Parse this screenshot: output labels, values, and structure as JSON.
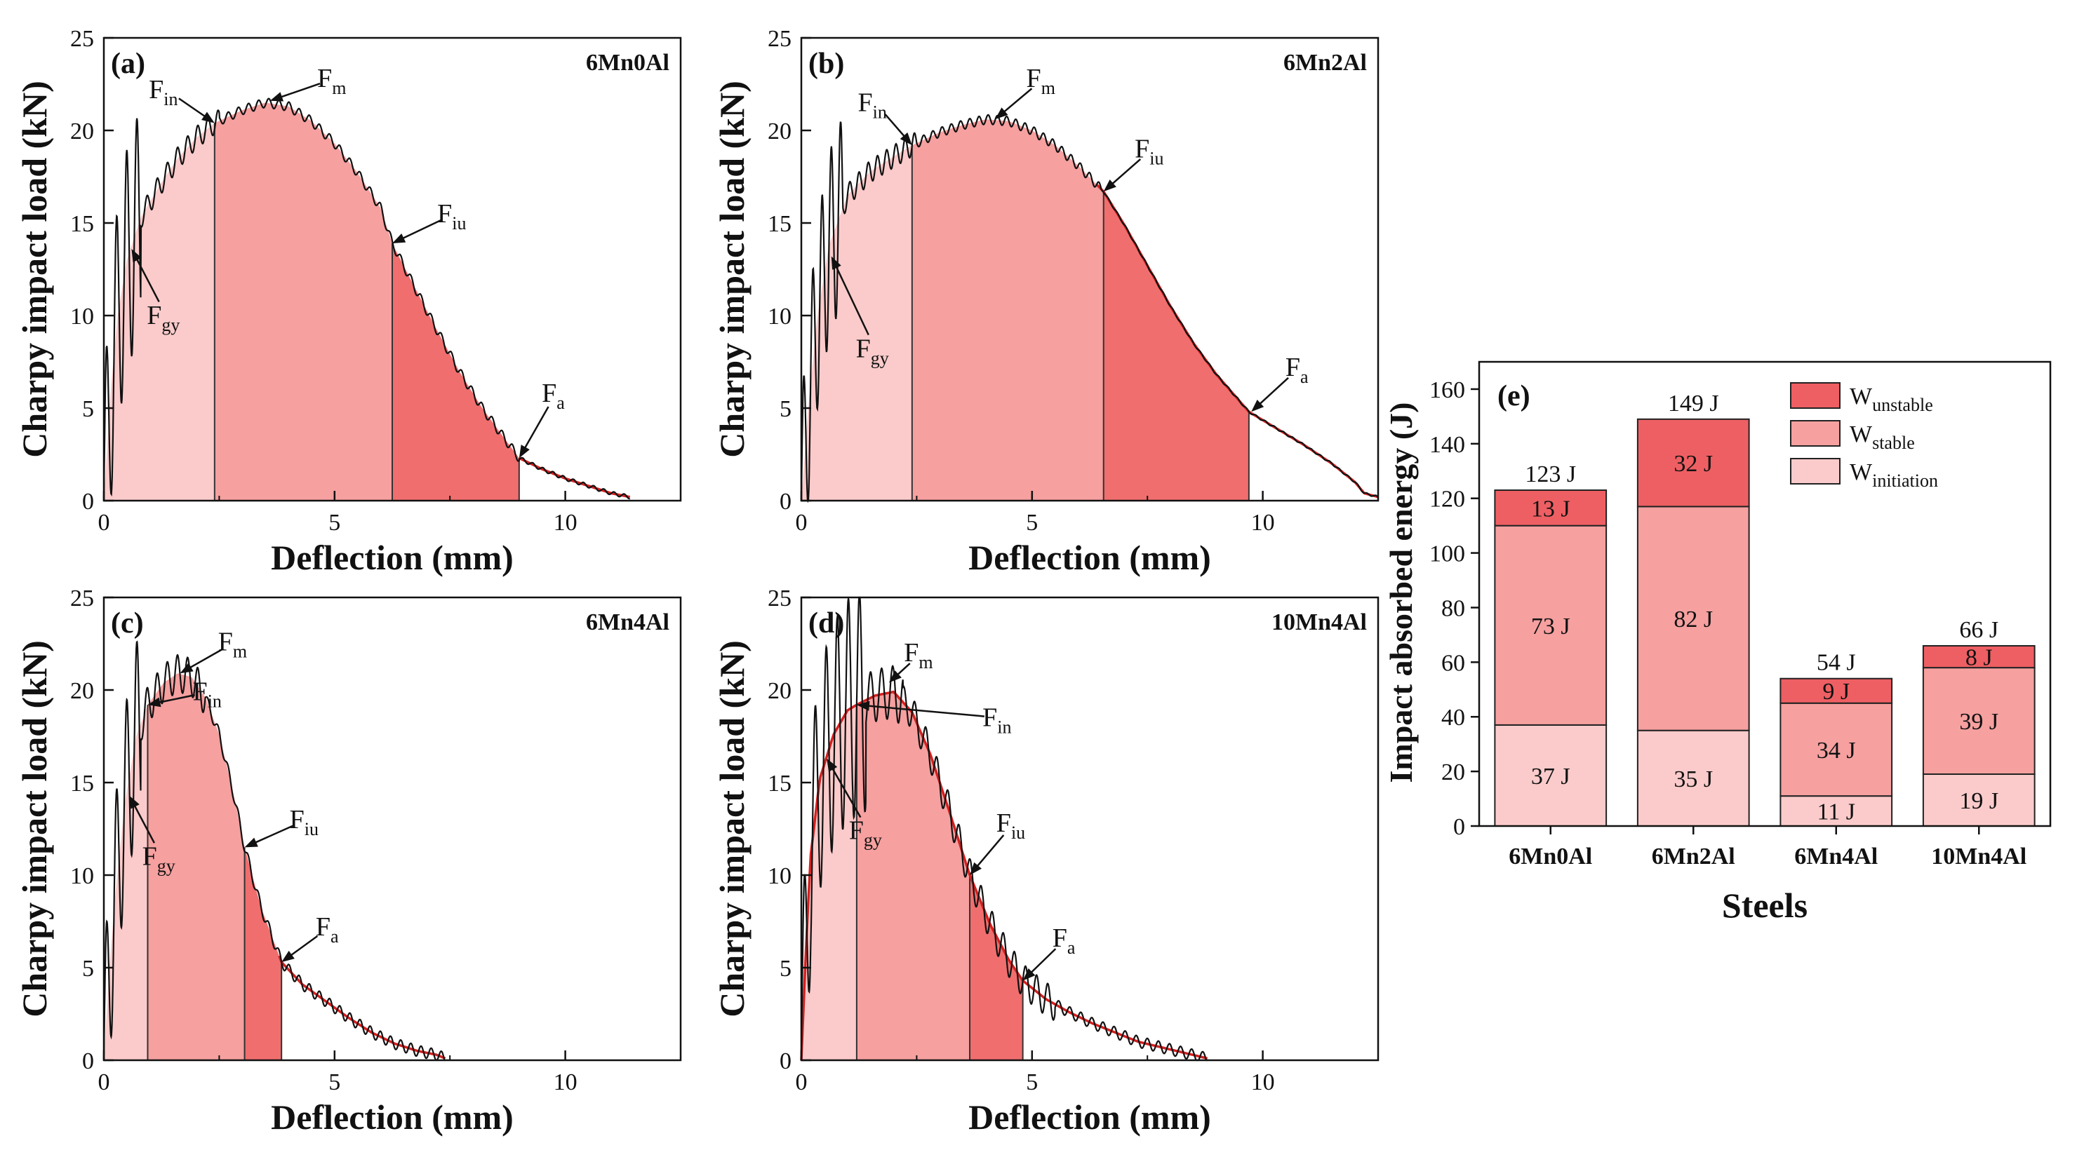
{
  "colors": {
    "initiation": "#fbcbcb",
    "stable": "#f6a0a0",
    "unstable": "#f16e6e",
    "unstable_dark": "#ee5f63",
    "curve_black": "#111111",
    "curve_red": "#d51f1f"
  },
  "panels": [
    {
      "label": "(a)",
      "steel": "6Mn0Al",
      "xlabel": "Deflection (mm)",
      "ylabel": "Charpy impact load (kN)",
      "xlim": [
        0,
        12.5
      ],
      "ylim": [
        0,
        25
      ],
      "xticks": [
        "0",
        "5",
        "10"
      ],
      "yticks": [
        "0",
        "5",
        "10",
        "15",
        "20",
        "25"
      ],
      "boundaries": {
        "in": 2.4,
        "iu": 6.25,
        "a": 9.0
      },
      "curve_end": 11.4,
      "smooth_points": [
        [
          0,
          0
        ],
        [
          0.15,
          6
        ],
        [
          0.3,
          10
        ],
        [
          0.5,
          13
        ],
        [
          0.8,
          15.3
        ],
        [
          1.2,
          17
        ],
        [
          1.6,
          18.5
        ],
        [
          2.0,
          19.6
        ],
        [
          2.4,
          20.4
        ],
        [
          3.0,
          21.1
        ],
        [
          3.5,
          21.5
        ],
        [
          4.0,
          21.3
        ],
        [
          4.5,
          20.5
        ],
        [
          5.0,
          19.3
        ],
        [
          5.5,
          17.7
        ],
        [
          6.0,
          15.8
        ],
        [
          6.25,
          13.9
        ],
        [
          6.7,
          11.7
        ],
        [
          7.2,
          9.3
        ],
        [
          7.7,
          7.0
        ],
        [
          8.2,
          5.0
        ],
        [
          8.7,
          3.3
        ],
        [
          9.0,
          2.3
        ],
        [
          9.5,
          1.7
        ],
        [
          10.0,
          1.2
        ],
        [
          10.5,
          0.8
        ],
        [
          11.0,
          0.4
        ],
        [
          11.4,
          0.2
        ]
      ],
      "osc": [
        [
          0,
          0.8,
          6
        ],
        [
          0.8,
          2.5,
          0.6
        ],
        [
          2.5,
          9.0,
          0.25
        ],
        [
          9.0,
          11.4,
          0.1
        ]
      ],
      "osc_period": 0.22,
      "red_from": 9.0,
      "arrows": [
        {
          "text": "F",
          "sub": "in",
          "x": 2.4,
          "y": 20.4,
          "tx": 1.35,
          "ty": 22.2
        },
        {
          "text": "F",
          "sub": "m",
          "x": 3.6,
          "y": 21.6,
          "tx": 5.0,
          "ty": 22.8
        },
        {
          "text": "F",
          "sub": "iu",
          "x": 6.25,
          "y": 13.9,
          "tx": 7.6,
          "ty": 15.5
        },
        {
          "text": "F",
          "sub": "gy",
          "x": 0.6,
          "y": 13.6,
          "tx": 1.35,
          "ty": 10.0
        },
        {
          "text": "F",
          "sub": "a",
          "x": 9.0,
          "y": 2.3,
          "tx": 9.8,
          "ty": 5.8
        }
      ]
    },
    {
      "label": "(b)",
      "steel": "6Mn2Al",
      "xlabel": "Deflection (mm)",
      "ylabel": "Charpy impact load (kN)",
      "xlim": [
        0,
        12.5
      ],
      "ylim": [
        0,
        25
      ],
      "xticks": [
        "0",
        "5",
        "10"
      ],
      "yticks": [
        "0",
        "5",
        "10",
        "15",
        "20",
        "25"
      ],
      "boundaries": {
        "in": 2.4,
        "iu": 6.55,
        "a": 9.7
      },
      "curve_end": 12.5,
      "smooth_points": [
        [
          0,
          0
        ],
        [
          0.15,
          5
        ],
        [
          0.35,
          10
        ],
        [
          0.6,
          13.8
        ],
        [
          1.0,
          16.5
        ],
        [
          1.5,
          17.8
        ],
        [
          2.0,
          18.6
        ],
        [
          2.4,
          19.2
        ],
        [
          3.0,
          19.9
        ],
        [
          3.5,
          20.3
        ],
        [
          4.0,
          20.6
        ],
        [
          4.5,
          20.5
        ],
        [
          5.0,
          20.0
        ],
        [
          5.5,
          19.2
        ],
        [
          6.0,
          18.1
        ],
        [
          6.55,
          16.7
        ],
        [
          7.0,
          14.9
        ],
        [
          7.5,
          12.7
        ],
        [
          8.0,
          10.5
        ],
        [
          8.5,
          8.5
        ],
        [
          9.0,
          6.8
        ],
        [
          9.7,
          4.8
        ],
        [
          10.3,
          3.9
        ],
        [
          10.9,
          3.0
        ],
        [
          11.5,
          2.0
        ],
        [
          12.0,
          1.0
        ],
        [
          12.2,
          0.4
        ],
        [
          12.5,
          0.2
        ]
      ],
      "osc": [
        [
          0,
          0.9,
          5
        ],
        [
          0.9,
          2.5,
          0.6
        ],
        [
          2.5,
          6.5,
          0.25
        ],
        [
          6.5,
          12.5,
          0.05
        ]
      ],
      "osc_period": 0.2,
      "red_from": 6.4,
      "arrows": [
        {
          "text": "F",
          "sub": "in",
          "x": 2.4,
          "y": 19.2,
          "tx": 1.6,
          "ty": 21.5
        },
        {
          "text": "F",
          "sub": "m",
          "x": 4.2,
          "y": 20.6,
          "tx": 5.25,
          "ty": 22.8
        },
        {
          "text": "F",
          "sub": "iu",
          "x": 6.55,
          "y": 16.7,
          "tx": 7.6,
          "ty": 19.0
        },
        {
          "text": "F",
          "sub": "gy",
          "x": 0.65,
          "y": 13.2,
          "tx": 1.6,
          "ty": 8.2
        },
        {
          "text": "F",
          "sub": "a",
          "x": 9.75,
          "y": 4.8,
          "tx": 10.8,
          "ty": 7.2
        }
      ]
    },
    {
      "label": "(c)",
      "steel": "6Mn4Al",
      "xlabel": "Deflection (mm)",
      "ylabel": "Charpy impact load (kN)",
      "xlim": [
        0,
        12.5
      ],
      "ylim": [
        0,
        25
      ],
      "xticks": [
        "0",
        "5",
        "10"
      ],
      "yticks": [
        "0",
        "5",
        "10",
        "15",
        "20",
        "25"
      ],
      "boundaries": {
        "in": 0.95,
        "iu": 3.05,
        "a": 3.85
      },
      "curve_end": 7.4,
      "smooth_points": [
        [
          0,
          0
        ],
        [
          0.12,
          5
        ],
        [
          0.25,
          9
        ],
        [
          0.45,
          13.8
        ],
        [
          0.7,
          17.5
        ],
        [
          0.95,
          19.2
        ],
        [
          1.3,
          20.4
        ],
        [
          1.6,
          20.9
        ],
        [
          1.9,
          20.7
        ],
        [
          2.2,
          19.6
        ],
        [
          2.5,
          17.6
        ],
        [
          2.8,
          14.5
        ],
        [
          3.05,
          11.5
        ],
        [
          3.4,
          8.3
        ],
        [
          3.85,
          5.3
        ],
        [
          4.3,
          4.1
        ],
        [
          4.8,
          3.2
        ],
        [
          5.3,
          2.3
        ],
        [
          5.8,
          1.5
        ],
        [
          6.3,
          0.9
        ],
        [
          6.8,
          0.5
        ],
        [
          7.2,
          0.3
        ],
        [
          7.4,
          0.1
        ]
      ],
      "osc": [
        [
          0,
          0.8,
          5
        ],
        [
          0.8,
          2.2,
          1.0
        ],
        [
          2.2,
          3.8,
          0.3
        ],
        [
          3.8,
          7.4,
          0.3
        ]
      ],
      "osc_period": 0.22,
      "red_from": 3.8,
      "arrows": [
        {
          "text": "F",
          "sub": "m",
          "x": 1.65,
          "y": 20.9,
          "tx": 2.85,
          "ty": 22.6
        },
        {
          "text": "F",
          "sub": "in",
          "x": 0.95,
          "y": 19.2,
          "tx": 2.3,
          "ty": 19.9
        },
        {
          "text": "F",
          "sub": "iu",
          "x": 3.05,
          "y": 11.5,
          "tx": 4.4,
          "ty": 13.0
        },
        {
          "text": "F",
          "sub": "gy",
          "x": 0.55,
          "y": 14.3,
          "tx": 1.25,
          "ty": 11.0
        },
        {
          "text": "F",
          "sub": "a",
          "x": 3.85,
          "y": 5.3,
          "tx": 4.9,
          "ty": 7.2
        }
      ]
    },
    {
      "label": "(d)",
      "steel": "10Mn4Al",
      "xlabel": "Deflection (mm)",
      "ylabel": "Charpy impact load (kN)",
      "xlim": [
        0,
        12.5
      ],
      "ylim": [
        0,
        25
      ],
      "xticks": [
        "0",
        "5",
        "10"
      ],
      "yticks": [
        "0",
        "5",
        "10",
        "15",
        "20",
        "25"
      ],
      "boundaries": {
        "in": 1.2,
        "iu": 3.65,
        "a": 4.8
      },
      "curve_end": 8.8,
      "smooth_points": [
        [
          0,
          0
        ],
        [
          0.1,
          6
        ],
        [
          0.2,
          11
        ],
        [
          0.4,
          15.2
        ],
        [
          0.7,
          17.6
        ],
        [
          1.0,
          18.9
        ],
        [
          1.2,
          19.2
        ],
        [
          1.6,
          19.7
        ],
        [
          2.0,
          19.9
        ],
        [
          2.4,
          18.8
        ],
        [
          2.8,
          16.5
        ],
        [
          3.2,
          13.5
        ],
        [
          3.65,
          10.0
        ],
        [
          4.1,
          7.3
        ],
        [
          4.5,
          5.4
        ],
        [
          4.8,
          4.3
        ],
        [
          5.3,
          3.3
        ],
        [
          5.8,
          2.6
        ],
        [
          6.3,
          2.0
        ],
        [
          6.8,
          1.5
        ],
        [
          7.3,
          1.0
        ],
        [
          7.8,
          0.7
        ],
        [
          8.3,
          0.4
        ],
        [
          8.8,
          0.1
        ]
      ],
      "osc": [
        [
          0,
          1.4,
          6
        ],
        [
          1.4,
          2.2,
          1.4
        ],
        [
          2.2,
          3.7,
          0.9
        ],
        [
          3.7,
          5.5,
          0.9
        ],
        [
          5.5,
          8.8,
          0.3
        ]
      ],
      "osc_period": 0.24,
      "red_from": 0,
      "arrows": [
        {
          "text": "F",
          "sub": "m",
          "x": 1.9,
          "y": 20.4,
          "tx": 2.6,
          "ty": 22.0
        },
        {
          "text": "F",
          "sub": "in",
          "x": 1.2,
          "y": 19.2,
          "tx": 4.3,
          "ty": 18.5
        },
        {
          "text": "F",
          "sub": "iu",
          "x": 3.65,
          "y": 10.0,
          "tx": 4.6,
          "ty": 12.8
        },
        {
          "text": "F",
          "sub": "gy",
          "x": 0.55,
          "y": 16.3,
          "tx": 1.45,
          "ty": 12.4
        },
        {
          "text": "F",
          "sub": "a",
          "x": 4.8,
          "y": 4.3,
          "tx": 5.75,
          "ty": 6.6
        }
      ]
    }
  ],
  "chart_data": [
    {
      "type": "line",
      "panel": "(a)",
      "title": "6Mn0Al",
      "xlabel": "Deflection (mm)",
      "ylabel": "Charpy impact load (kN)",
      "xlim": [
        0,
        12.5
      ],
      "ylim": [
        0,
        25
      ],
      "x": [
        0,
        0.5,
        1.0,
        2.4,
        3.5,
        4.5,
        5.5,
        6.25,
        7.2,
        8.2,
        9.0,
        10.0,
        11.4
      ],
      "y": [
        0,
        13,
        16.2,
        20.4,
        21.5,
        20.5,
        17.7,
        13.9,
        9.3,
        5.0,
        2.3,
        1.2,
        0.2
      ],
      "annotations": [
        "Fgy",
        "Fin",
        "Fm",
        "Fiu",
        "Fa"
      ]
    },
    {
      "type": "line",
      "panel": "(b)",
      "title": "6Mn2Al",
      "xlabel": "Deflection (mm)",
      "ylabel": "Charpy impact load (kN)",
      "xlim": [
        0,
        12.5
      ],
      "ylim": [
        0,
        25
      ],
      "x": [
        0,
        0.6,
        1.5,
        2.4,
        3.5,
        4.5,
        5.5,
        6.55,
        7.5,
        8.5,
        9.7,
        11.0,
        12.5
      ],
      "y": [
        0,
        13.8,
        17.8,
        19.2,
        20.3,
        20.5,
        19.2,
        16.7,
        12.7,
        8.5,
        4.8,
        2.8,
        0.2
      ],
      "annotations": [
        "Fgy",
        "Fin",
        "Fm",
        "Fiu",
        "Fa"
      ]
    },
    {
      "type": "line",
      "panel": "(c)",
      "title": "6Mn4Al",
      "xlabel": "Deflection (mm)",
      "ylabel": "Charpy impact load (kN)",
      "xlim": [
        0,
        12.5
      ],
      "ylim": [
        0,
        25
      ],
      "x": [
        0,
        0.45,
        0.95,
        1.6,
        2.2,
        3.05,
        3.85,
        4.8,
        5.8,
        6.8,
        7.4
      ],
      "y": [
        0,
        13.8,
        19.2,
        20.9,
        19.6,
        11.5,
        5.3,
        3.2,
        1.5,
        0.5,
        0.1
      ],
      "annotations": [
        "Fgy",
        "Fin",
        "Fm",
        "Fiu",
        "Fa"
      ]
    },
    {
      "type": "line",
      "panel": "(d)",
      "title": "10Mn4Al",
      "xlabel": "Deflection (mm)",
      "ylabel": "Charpy impact load (kN)",
      "xlim": [
        0,
        12.5
      ],
      "ylim": [
        0,
        25
      ],
      "x": [
        0,
        0.4,
        1.2,
        2.0,
        2.8,
        3.65,
        4.8,
        5.8,
        6.8,
        7.8,
        8.8
      ],
      "y": [
        0,
        15.2,
        19.2,
        19.9,
        16.5,
        10.0,
        4.3,
        2.6,
        1.5,
        0.7,
        0.1
      ],
      "annotations": [
        "Fgy",
        "Fin",
        "Fm",
        "Fiu",
        "Fa"
      ]
    },
    {
      "type": "bar",
      "panel": "(e)",
      "stacked": true,
      "xlabel": "Steels",
      "ylabel": "Impact absorbed energy (J)",
      "ylim": [
        0,
        170
      ],
      "yticks": [
        "0",
        "20",
        "40",
        "60",
        "80",
        "100",
        "120",
        "140",
        "160"
      ],
      "categories": [
        "6Mn0Al",
        "6Mn2Al",
        "6Mn4Al",
        "10Mn4Al"
      ],
      "series": [
        {
          "name": "W",
          "sub": "initiation",
          "values": [
            37,
            35,
            11,
            19
          ],
          "labels": [
            "37 J",
            "35 J",
            "11 J",
            "19 J"
          ]
        },
        {
          "name": "W",
          "sub": "stable",
          "values": [
            73,
            82,
            34,
            39
          ],
          "labels": [
            "73 J",
            "82 J",
            "34 J",
            "39 J"
          ]
        },
        {
          "name": "W",
          "sub": "unstable",
          "values": [
            13,
            32,
            9,
            8
          ],
          "labels": [
            "13 J",
            "32 J",
            "9 J",
            "8 J"
          ]
        }
      ],
      "totals": [
        123,
        149,
        54,
        66
      ],
      "total_labels": [
        "123 J",
        "149 J",
        "54 J",
        "66 J"
      ],
      "label": "(e)",
      "legend": "top-right"
    }
  ]
}
